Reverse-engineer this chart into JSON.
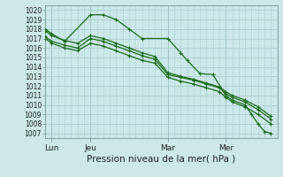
{
  "title": "",
  "xlabel": "Pression niveau de la mer( hPa )",
  "ylabel": "",
  "bg_color": "#cce8e8",
  "grid_color": "#aacece",
  "line_color": "#1a6b1a",
  "ylim": [
    1006.5,
    1020.5
  ],
  "yticks": [
    1007,
    1008,
    1009,
    1010,
    1011,
    1012,
    1013,
    1014,
    1015,
    1016,
    1017,
    1018,
    1019,
    1020
  ],
  "xlim": [
    0,
    72
  ],
  "xtick_labels": [
    "Lun",
    "Jeu",
    "Mar",
    "Mer"
  ],
  "xtick_positions": [
    2,
    14,
    38,
    56
  ],
  "vline_positions": [
    2,
    14,
    38,
    56
  ],
  "lines": [
    [
      0,
      1018.0,
      2,
      1017.5,
      6,
      1016.7,
      14,
      1019.5,
      18,
      1019.5,
      22,
      1019.0,
      26,
      1018.0,
      30,
      1017.0,
      38,
      1017.0,
      42,
      1015.5,
      44,
      1014.7,
      48,
      1013.3,
      52,
      1013.2,
      56,
      1011.0,
      58,
      1010.5,
      62,
      1010.0,
      64,
      1009.0,
      66,
      1008.0,
      68,
      1007.2,
      70,
      1007.0
    ],
    [
      0,
      1017.2,
      2,
      1016.7,
      6,
      1016.3,
      10,
      1016.0,
      14,
      1017.0,
      18,
      1016.7,
      22,
      1016.2,
      26,
      1015.7,
      30,
      1015.2,
      34,
      1014.8,
      38,
      1013.2,
      42,
      1012.9,
      46,
      1012.6,
      50,
      1012.2,
      54,
      1011.8,
      56,
      1011.2,
      58,
      1010.8,
      62,
      1010.3,
      66,
      1009.5,
      70,
      1008.5
    ],
    [
      0,
      1017.0,
      2,
      1016.5,
      6,
      1016.0,
      10,
      1015.7,
      14,
      1016.5,
      18,
      1016.2,
      22,
      1015.7,
      26,
      1015.2,
      30,
      1014.7,
      34,
      1014.4,
      38,
      1012.9,
      42,
      1012.5,
      46,
      1012.2,
      50,
      1011.8,
      54,
      1011.4,
      56,
      1010.8,
      58,
      1010.3,
      62,
      1009.8,
      66,
      1009.0,
      70,
      1008.0
    ],
    [
      0,
      1017.8,
      2,
      1017.3,
      6,
      1016.8,
      10,
      1016.5,
      14,
      1017.3,
      18,
      1017.0,
      22,
      1016.5,
      26,
      1016.0,
      30,
      1015.5,
      34,
      1015.1,
      38,
      1013.4,
      42,
      1013.0,
      46,
      1012.7,
      50,
      1012.3,
      54,
      1011.9,
      56,
      1011.4,
      58,
      1011.0,
      62,
      1010.5,
      66,
      1009.8,
      70,
      1008.8
    ]
  ],
  "marker_style": "+",
  "marker_size": 3.5,
  "linewidth": 0.9,
  "xlabel_fontsize": 7.5,
  "ytick_fontsize": 5.5,
  "xtick_fontsize": 6.5
}
